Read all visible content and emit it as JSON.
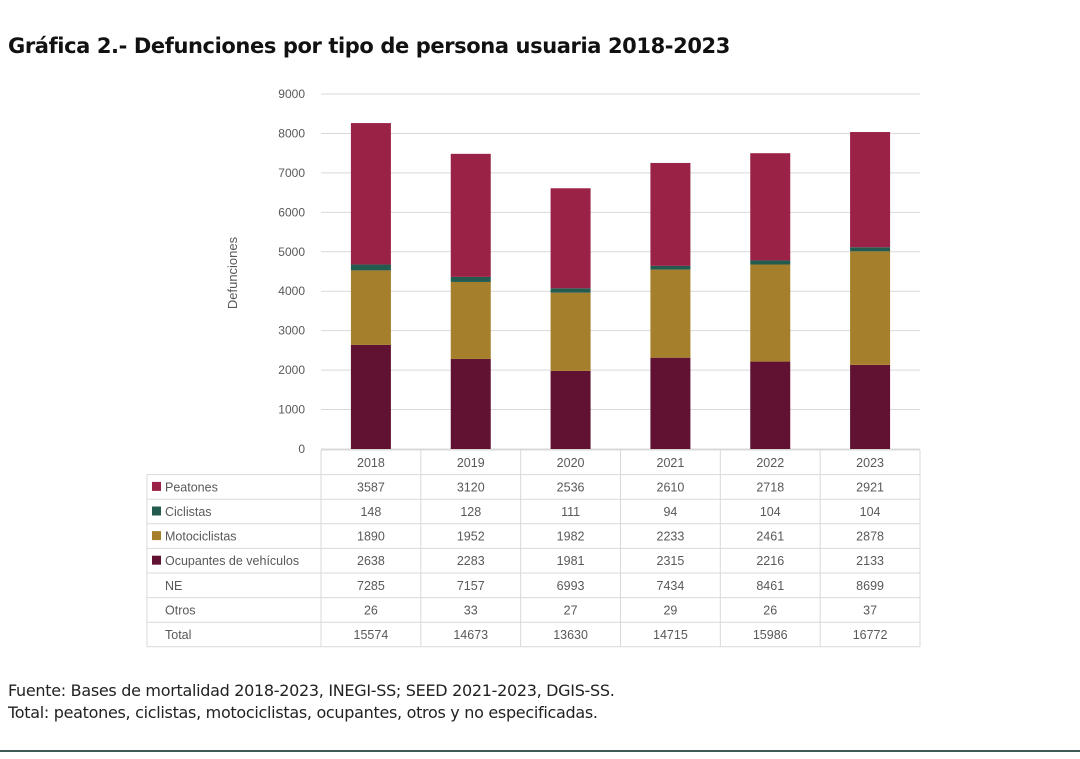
{
  "title": "Gráfica 2.- Defunciones por tipo de persona usuaria 2018-2023",
  "footnotes": {
    "source": "Fuente: Bases de mortalidad 2018-2023, INEGI-SS; SEED 2021-2023, DGIS-SS.",
    "total_note": "Total: peatones, ciclistas, motociclistas, ocupantes, otros y no especificadas."
  },
  "chart_data": {
    "type": "bar",
    "stacked": true,
    "title": "Gráfica 2.- Defunciones por tipo de persona usuaria 2018-2023",
    "xlabel": "",
    "ylabel": "Defunciones",
    "ylim": [
      0,
      9000
    ],
    "yticks": [
      0,
      1000,
      2000,
      3000,
      4000,
      5000,
      6000,
      7000,
      8000,
      9000
    ],
    "grid": true,
    "legend": "data-table-below",
    "categories": [
      "2018",
      "2019",
      "2020",
      "2021",
      "2022",
      "2023"
    ],
    "series": [
      {
        "name": "Ocupantes de vehículos",
        "color": "#611232",
        "values": [
          2638,
          2283,
          1981,
          2315,
          2216,
          2133
        ]
      },
      {
        "name": "Motociclistas",
        "color": "#a57f2c",
        "values": [
          1890,
          1952,
          1982,
          2233,
          2461,
          2878
        ]
      },
      {
        "name": "Ciclistas",
        "color": "#235b4e",
        "values": [
          148,
          128,
          111,
          94,
          104,
          104
        ]
      },
      {
        "name": "Peatones",
        "color": "#9b2247",
        "values": [
          3587,
          3120,
          2536,
          2610,
          2718,
          2921
        ]
      }
    ],
    "table": {
      "rows": [
        {
          "label": "Peatones",
          "color": "#9b2247",
          "values": [
            3587,
            3120,
            2536,
            2610,
            2718,
            2921
          ]
        },
        {
          "label": "Ciclistas",
          "color": "#235b4e",
          "values": [
            148,
            128,
            111,
            94,
            104,
            104
          ]
        },
        {
          "label": "Motociclistas",
          "color": "#a57f2c",
          "values": [
            1890,
            1952,
            1982,
            2233,
            2461,
            2878
          ]
        },
        {
          "label": "Ocupantes de vehículos",
          "color": "#611232",
          "values": [
            2638,
            2283,
            1981,
            2315,
            2216,
            2133
          ]
        },
        {
          "label": "NE",
          "color": null,
          "values": [
            7285,
            7157,
            6993,
            7434,
            8461,
            8699
          ]
        },
        {
          "label": "Otros",
          "color": null,
          "values": [
            26,
            33,
            27,
            29,
            26,
            37
          ]
        },
        {
          "label": "Total",
          "color": null,
          "values": [
            15574,
            14673,
            13630,
            14715,
            15986,
            16772
          ]
        }
      ]
    }
  }
}
